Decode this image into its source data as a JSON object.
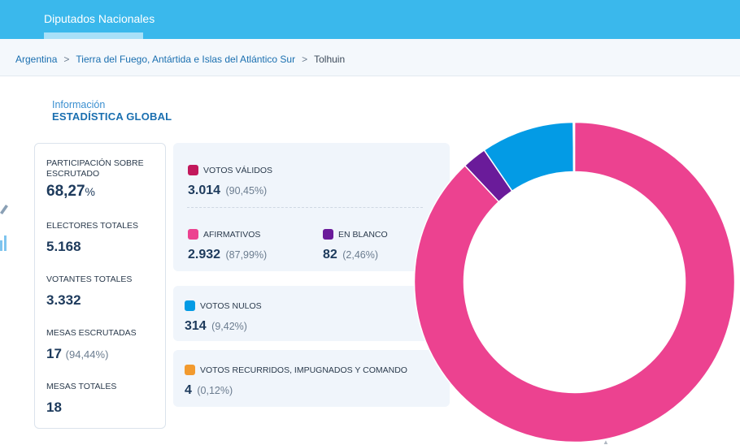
{
  "header": {
    "tab_label": "Diputados Nacionales"
  },
  "breadcrumb": {
    "items": [
      "Argentina",
      "Tierra del Fuego, Antártida e Islas del Atlántico Sur"
    ],
    "current": "Tolhuin",
    "separator": ">"
  },
  "section": {
    "subtitle": "Información",
    "title": "ESTADÍSTICA GLOBAL"
  },
  "stats": {
    "participacion": {
      "label": "PARTICIPACIÓN SOBRE ESCRUTADO",
      "value": "68,27",
      "suffix": "%"
    },
    "electores": {
      "label": "ELECTORES TOTALES",
      "value": "5.168"
    },
    "votantes": {
      "label": "VOTANTES TOTALES",
      "value": "3.332"
    },
    "mesas_escrutadas": {
      "label": "MESAS ESCRUTADAS",
      "value": "17",
      "percent": "(94,44%)"
    },
    "mesas_totales": {
      "label": "MESAS TOTALES",
      "value": "18"
    }
  },
  "votes": {
    "validos": {
      "label": "VOTOS VÁLIDOS",
      "value": "3.014",
      "percent": "(90,45%)",
      "color": "#c2185b"
    },
    "afirmativos": {
      "label": "AFIRMATIVOS",
      "value": "2.932",
      "percent": "(87,99%)",
      "color": "#ec4290"
    },
    "en_blanco": {
      "label": "EN BLANCO",
      "value": "82",
      "percent": "(2,46%)",
      "color": "#6a1b9a"
    },
    "nulos": {
      "label": "VOTOS NULOS",
      "value": "314",
      "percent": "(9,42%)",
      "color": "#039be5"
    },
    "recurridos": {
      "label": "VOTOS RECURRIDOS, IMPUGNADOS Y COMANDO",
      "value": "4",
      "percent": "(0,12%)",
      "color": "#f29a2e"
    }
  },
  "chart_data": {
    "type": "pie",
    "style": "donut",
    "categories": [
      "AFIRMATIVOS",
      "EN BLANCO",
      "VOTOS NULOS",
      "VOTOS RECURRIDOS, IMPUGNADOS Y COMANDO"
    ],
    "values": [
      87.99,
      2.46,
      9.42,
      0.12
    ],
    "colors": [
      "#ec4290",
      "#6a1b9a",
      "#039be5",
      "#f29a2e"
    ]
  }
}
